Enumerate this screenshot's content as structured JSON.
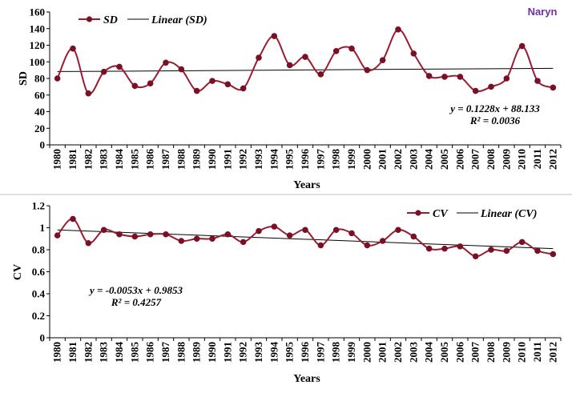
{
  "site_label": "Naryn",
  "colors": {
    "series": "#9b1c31",
    "marker": "#7a1026",
    "trend": "#000000",
    "site": "#7030a0",
    "divider": "#bfbfbf"
  },
  "chart_data": [
    {
      "type": "line",
      "panel": "sd",
      "xlabel": "Years",
      "ylabel": "SD",
      "ylim": [
        0,
        160
      ],
      "yticks": [
        "0",
        "20",
        "40",
        "60",
        "80",
        "100",
        "120",
        "140",
        "160"
      ],
      "categories": [
        "1980",
        "1981",
        "1982",
        "1983",
        "1984",
        "1985",
        "1986",
        "1987",
        "1988",
        "1989",
        "1990",
        "1991",
        "1992",
        "1993",
        "1994",
        "1995",
        "1996",
        "1997",
        "1998",
        "1999",
        "2000",
        "2001",
        "2002",
        "2003",
        "2004",
        "2005",
        "2006",
        "2007",
        "2008",
        "2009",
        "2010",
        "2011",
        "2012"
      ],
      "series": [
        {
          "name": "SD",
          "values": [
            80,
            116,
            62,
            88,
            94,
            71,
            74,
            99,
            91,
            65,
            77,
            73,
            68,
            105,
            131,
            96,
            106,
            85,
            113,
            116,
            90,
            102,
            139,
            110,
            83,
            82,
            82,
            65,
            70,
            80,
            119,
            77,
            69
          ]
        }
      ],
      "trend": {
        "name": "Linear (SD)",
        "slope": 0.1228,
        "intercept": 88.133,
        "equation": "y = 0.1228x + 88.133",
        "r2": "R² = 0.0036"
      },
      "legend": "top-left"
    },
    {
      "type": "line",
      "panel": "cv",
      "xlabel": "Years",
      "ylabel": "CV",
      "ylim": [
        0,
        1.2
      ],
      "yticks": [
        "0",
        "0.2",
        "0.4",
        "0.6",
        "0.8",
        "1",
        "1.2"
      ],
      "categories": [
        "1980",
        "1981",
        "1982",
        "1983",
        "1984",
        "1985",
        "1986",
        "1987",
        "1988",
        "1989",
        "1990",
        "1991",
        "1992",
        "1993",
        "1994",
        "1995",
        "1996",
        "1997",
        "1998",
        "1999",
        "2000",
        "2001",
        "2002",
        "2003",
        "2004",
        "2005",
        "2006",
        "2007",
        "2008",
        "2009",
        "2010",
        "2011",
        "2012"
      ],
      "series": [
        {
          "name": "CV",
          "values": [
            0.93,
            1.08,
            0.86,
            0.98,
            0.94,
            0.92,
            0.94,
            0.94,
            0.88,
            0.9,
            0.9,
            0.94,
            0.87,
            0.97,
            1.01,
            0.93,
            0.98,
            0.84,
            0.98,
            0.95,
            0.84,
            0.88,
            0.98,
            0.92,
            0.81,
            0.81,
            0.83,
            0.74,
            0.8,
            0.79,
            0.87,
            0.79,
            0.76
          ]
        }
      ],
      "trend": {
        "name": "Linear (CV)",
        "slope": -0.0053,
        "intercept": 0.9853,
        "equation": "y = -0.0053x + 0.9853",
        "r2": "R² = 0.4257"
      },
      "legend": "top-right"
    }
  ]
}
